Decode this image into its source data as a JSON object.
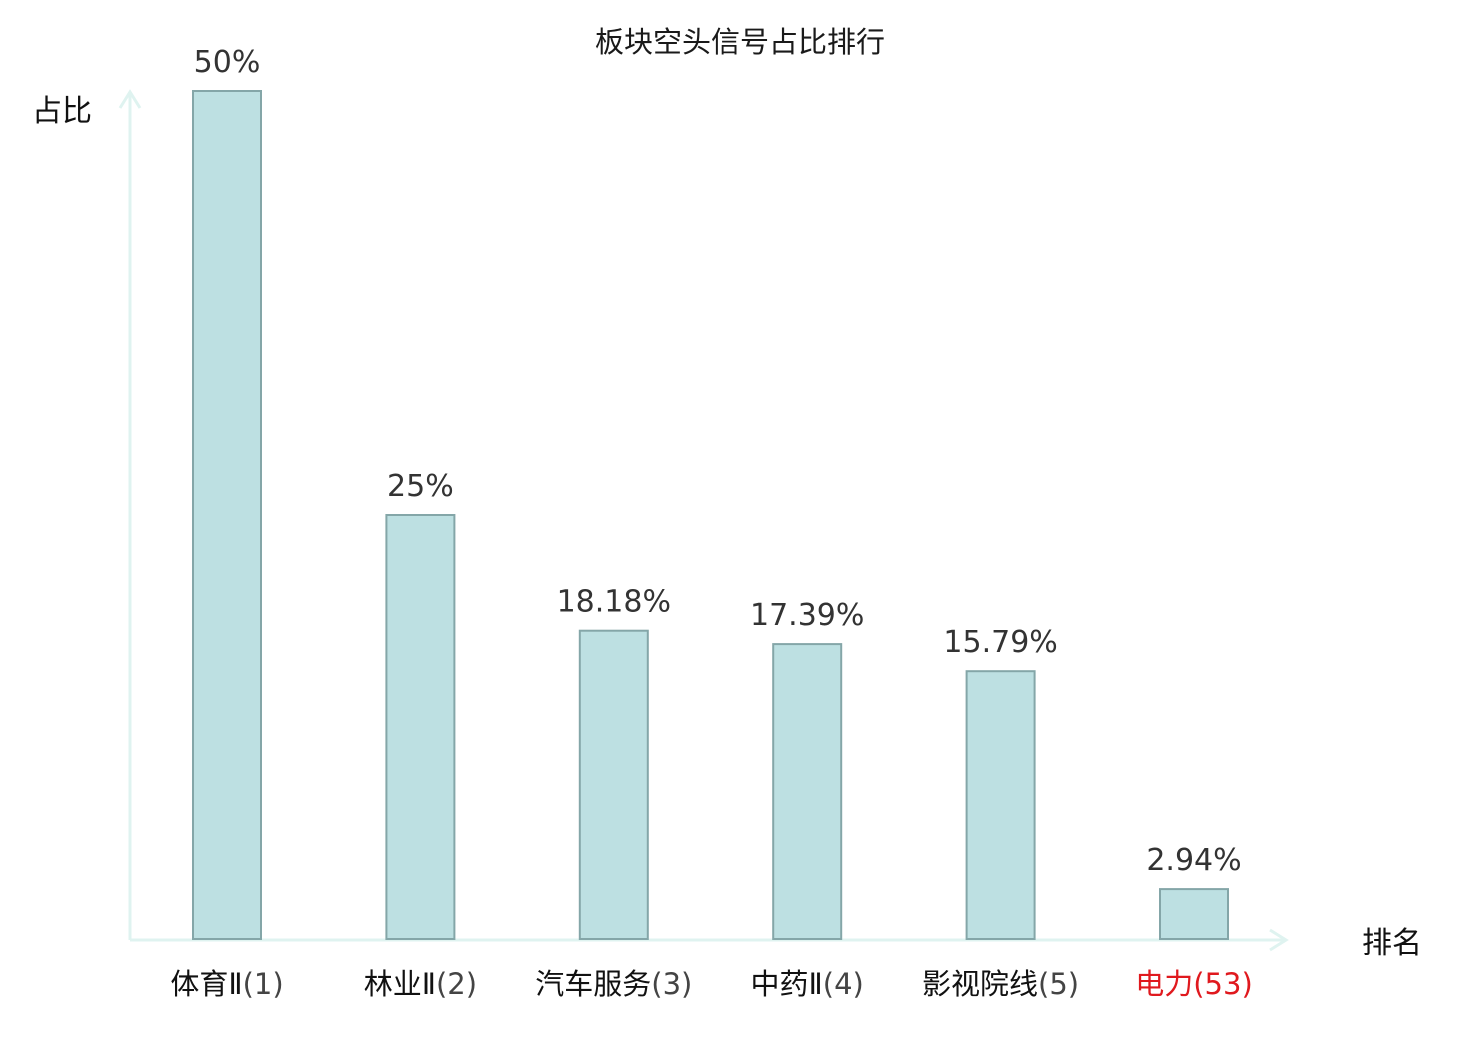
{
  "chart_data": {
    "type": "bar",
    "title": "板块空头信号占比排行",
    "xlabel": "排名",
    "ylabel": "占比",
    "ylim": [
      0,
      50
    ],
    "grid": false,
    "categories": [
      {
        "name": "体育Ⅱ",
        "rank": "(1)",
        "highlight": false
      },
      {
        "name": "林业Ⅱ",
        "rank": "(2)",
        "highlight": false
      },
      {
        "name": "汽车服务",
        "rank": "(3)",
        "highlight": false
      },
      {
        "name": "中药Ⅱ",
        "rank": "(4)",
        "highlight": false
      },
      {
        "name": "影视院线",
        "rank": "(5)",
        "highlight": false
      },
      {
        "name": "电力",
        "rank": "(53)",
        "highlight": true
      }
    ],
    "values": [
      50,
      25,
      18.18,
      17.39,
      15.79,
      2.94
    ],
    "value_labels": [
      "50%",
      "25%",
      "18.18%",
      "17.39%",
      "15.79%",
      "2.94%"
    ]
  },
  "colors": {
    "bar_fill": "#bde0e2",
    "bar_stroke": "#84a6a8",
    "axis": "#dff3f0",
    "highlight_text": "#e0191e",
    "name_text": "#111111",
    "rank_text": "#444444",
    "value_text": "#333333"
  }
}
